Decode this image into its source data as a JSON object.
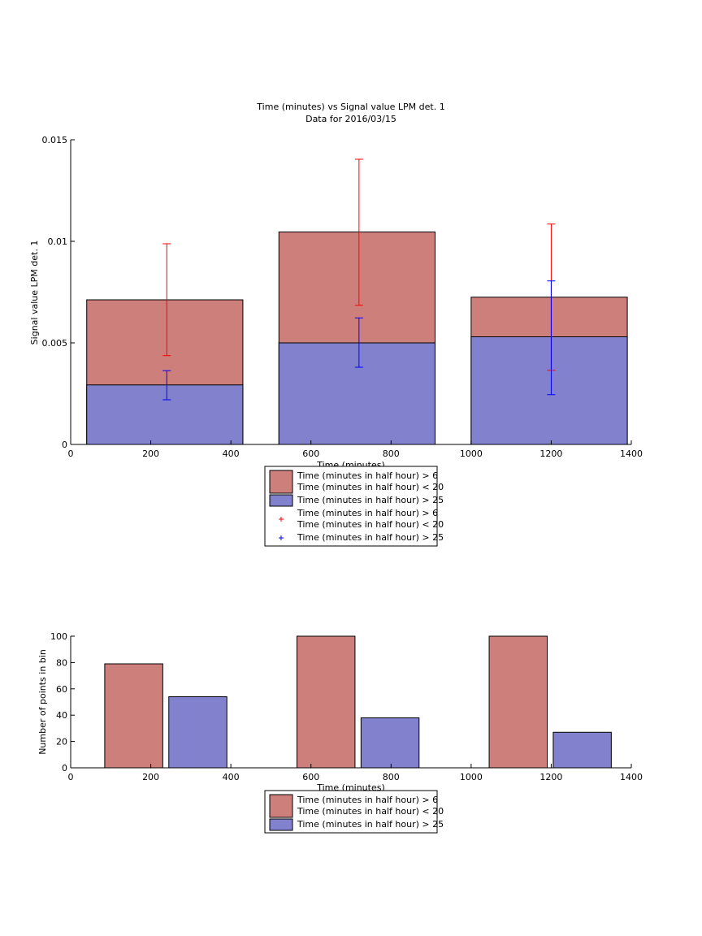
{
  "colors": {
    "red_fill": "#cd7f7c",
    "blue_fill": "#8181cd",
    "red_line": "#ff0000",
    "blue_line": "#0000ff",
    "edge": "#000000"
  },
  "chart_data": [
    {
      "type": "bar",
      "stacked": "overlay",
      "title": "Time (minutes) vs Signal value LPM det. 1",
      "subtitle": "Data for 2016/03/15",
      "xlabel": "Time (minutes)",
      "ylabel": "Signal value LPM det. 1",
      "xlim": [
        0,
        1400
      ],
      "ylim": [
        0,
        0.015
      ],
      "xticks": [
        "0",
        "200",
        "400",
        "600",
        "800",
        "1000",
        "1200",
        "1400"
      ],
      "yticks": [
        "0",
        "0.005",
        "0.01",
        "0.015"
      ],
      "bins": [
        {
          "x_start": 40,
          "x_end": 430,
          "center": 240
        },
        {
          "x_start": 520,
          "x_end": 910,
          "center": 720
        },
        {
          "x_start": 1000,
          "x_end": 1390,
          "center": 1200
        }
      ],
      "series": [
        {
          "name": "Time (minutes in half hour) > 6\nTime (minutes in half hour) < 20",
          "color": "red",
          "values": [
            0.00712,
            0.01046,
            0.00725
          ],
          "err_low": [
            0.00437,
            0.00685,
            0.00365
          ],
          "err_high": [
            0.00988,
            0.01404,
            0.01085
          ]
        },
        {
          "name": "Time (minutes in half hour) > 25",
          "color": "blue",
          "values": [
            0.00293,
            0.005,
            0.0053
          ],
          "err_low": [
            0.0022,
            0.0038,
            0.00245
          ],
          "err_high": [
            0.00363,
            0.00623,
            0.00805
          ]
        }
      ],
      "legend": {
        "placement": "below",
        "entries": [
          {
            "kind": "patch",
            "color": "red",
            "lines": [
              "Time (minutes in half hour) > 6",
              "Time (minutes in half hour) < 20"
            ]
          },
          {
            "kind": "patch",
            "color": "blue",
            "lines": [
              "Time (minutes in half hour) > 25"
            ]
          },
          {
            "kind": "marker",
            "color": "red",
            "lines": [
              "Time (minutes in half hour) > 6",
              "Time (minutes in half hour) < 20"
            ]
          },
          {
            "kind": "marker",
            "color": "blue",
            "lines": [
              "Time (minutes in half hour) > 25"
            ]
          }
        ]
      }
    },
    {
      "type": "bar",
      "title": "",
      "xlabel": "Time (minutes)",
      "ylabel": "Number of points in bin",
      "xlim": [
        0,
        1400
      ],
      "ylim": [
        0,
        100
      ],
      "xticks": [
        "0",
        "200",
        "400",
        "600",
        "800",
        "1000",
        "1200",
        "1400"
      ],
      "yticks": [
        "0",
        "20",
        "40",
        "60",
        "80",
        "100"
      ],
      "series": [
        {
          "name": "Time (minutes in half hour) > 6\nTime (minutes in half hour) < 20",
          "color": "red",
          "x_ranges": [
            [
              85,
              230
            ],
            [
              565,
              710
            ],
            [
              1045,
              1190
            ]
          ],
          "values": [
            79,
            100,
            100
          ]
        },
        {
          "name": "Time (minutes in half hour) > 25",
          "color": "blue",
          "x_ranges": [
            [
              245,
              390
            ],
            [
              725,
              870
            ],
            [
              1205,
              1350
            ]
          ],
          "values": [
            54,
            38,
            27
          ]
        }
      ],
      "legend": {
        "placement": "below",
        "entries": [
          {
            "kind": "patch",
            "color": "red",
            "lines": [
              "Time (minutes in half hour) > 6",
              "Time (minutes in half hour) < 20"
            ]
          },
          {
            "kind": "patch",
            "color": "blue",
            "lines": [
              "Time (minutes in half hour) > 25"
            ]
          }
        ]
      }
    }
  ]
}
